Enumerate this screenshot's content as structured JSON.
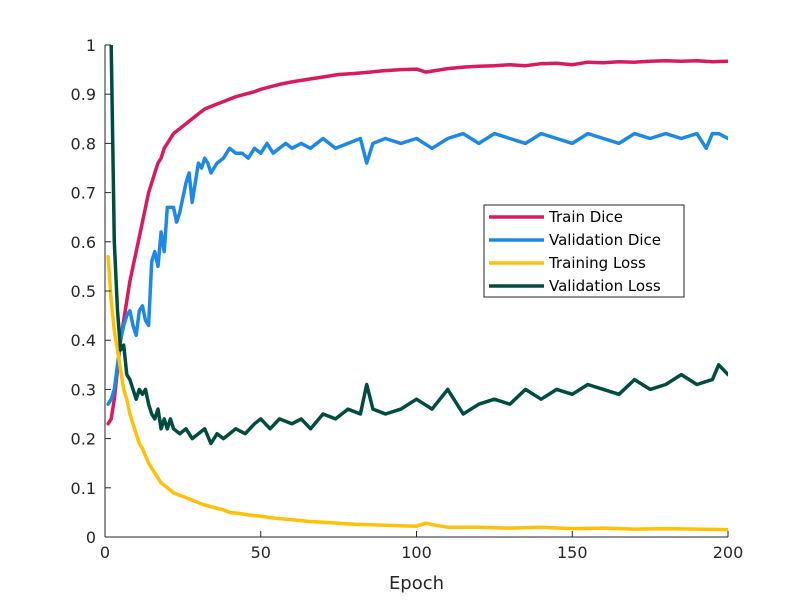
{
  "chart_data": {
    "type": "line",
    "title": "",
    "xlabel": "Epoch",
    "ylabel": "",
    "xlim": [
      0,
      200
    ],
    "ylim": [
      0,
      1
    ],
    "xticks": [
      0,
      50,
      100,
      150,
      200
    ],
    "yticks": [
      0,
      0.1,
      0.2,
      0.3,
      0.4,
      0.5,
      0.6,
      0.7,
      0.8,
      0.9,
      1
    ],
    "grid": false,
    "legend_position": "right-middle",
    "series": [
      {
        "name": "Train Dice",
        "color": "#d81b60",
        "x": [
          1,
          2,
          3,
          4,
          5,
          6,
          7,
          8,
          9,
          10,
          11,
          12,
          13,
          14,
          15,
          16,
          17,
          18,
          19,
          20,
          22,
          24,
          26,
          28,
          30,
          32,
          34,
          36,
          38,
          40,
          42,
          45,
          48,
          50,
          53,
          56,
          60,
          65,
          70,
          75,
          80,
          85,
          90,
          95,
          100,
          103,
          106,
          110,
          115,
          120,
          125,
          130,
          135,
          140,
          145,
          150,
          155,
          160,
          165,
          170,
          175,
          180,
          185,
          190,
          195,
          200
        ],
        "y": [
          0.23,
          0.24,
          0.28,
          0.34,
          0.4,
          0.44,
          0.48,
          0.52,
          0.55,
          0.58,
          0.61,
          0.64,
          0.67,
          0.7,
          0.72,
          0.74,
          0.76,
          0.77,
          0.79,
          0.8,
          0.82,
          0.83,
          0.84,
          0.85,
          0.86,
          0.87,
          0.875,
          0.88,
          0.885,
          0.89,
          0.895,
          0.9,
          0.905,
          0.91,
          0.915,
          0.92,
          0.925,
          0.93,
          0.935,
          0.94,
          0.942,
          0.945,
          0.948,
          0.95,
          0.951,
          0.945,
          0.948,
          0.952,
          0.955,
          0.957,
          0.958,
          0.96,
          0.958,
          0.962,
          0.963,
          0.96,
          0.965,
          0.964,
          0.966,
          0.965,
          0.967,
          0.968,
          0.967,
          0.968,
          0.966,
          0.967
        ]
      },
      {
        "name": "Validation Dice",
        "color": "#1e88e5",
        "x": [
          1,
          2,
          3,
          4,
          5,
          6,
          7,
          8,
          9,
          10,
          11,
          12,
          13,
          14,
          15,
          16,
          17,
          18,
          19,
          20,
          21,
          22,
          23,
          24,
          25,
          26,
          27,
          28,
          29,
          30,
          31,
          32,
          33,
          34,
          35,
          36,
          38,
          40,
          42,
          44,
          46,
          48,
          50,
          52,
          54,
          56,
          58,
          60,
          63,
          66,
          70,
          74,
          78,
          82,
          84,
          86,
          90,
          95,
          100,
          105,
          110,
          115,
          120,
          125,
          130,
          135,
          140,
          145,
          150,
          155,
          160,
          165,
          170,
          175,
          180,
          185,
          190,
          193,
          195,
          197,
          200
        ],
        "y": [
          0.27,
          0.28,
          0.3,
          0.35,
          0.4,
          0.43,
          0.45,
          0.46,
          0.43,
          0.41,
          0.46,
          0.47,
          0.44,
          0.43,
          0.56,
          0.58,
          0.55,
          0.62,
          0.58,
          0.67,
          0.67,
          0.67,
          0.64,
          0.66,
          0.69,
          0.72,
          0.74,
          0.68,
          0.72,
          0.76,
          0.75,
          0.77,
          0.76,
          0.74,
          0.75,
          0.76,
          0.77,
          0.79,
          0.78,
          0.78,
          0.77,
          0.79,
          0.78,
          0.8,
          0.78,
          0.79,
          0.8,
          0.79,
          0.8,
          0.79,
          0.81,
          0.79,
          0.8,
          0.81,
          0.76,
          0.8,
          0.81,
          0.8,
          0.81,
          0.79,
          0.81,
          0.82,
          0.8,
          0.82,
          0.81,
          0.8,
          0.82,
          0.81,
          0.8,
          0.82,
          0.81,
          0.8,
          0.82,
          0.81,
          0.82,
          0.81,
          0.82,
          0.79,
          0.82,
          0.82,
          0.81
        ]
      },
      {
        "name": "Training Loss",
        "color": "#ffc107",
        "x": [
          1,
          2,
          3,
          4,
          5,
          6,
          7,
          8,
          9,
          10,
          11,
          12,
          13,
          14,
          15,
          16,
          17,
          18,
          20,
          22,
          24,
          26,
          28,
          30,
          32,
          35,
          38,
          40,
          43,
          46,
          50,
          55,
          60,
          65,
          70,
          75,
          80,
          90,
          100,
          103,
          106,
          110,
          120,
          130,
          140,
          150,
          160,
          170,
          180,
          190,
          200
        ],
        "y": [
          0.57,
          0.48,
          0.42,
          0.38,
          0.34,
          0.3,
          0.28,
          0.25,
          0.23,
          0.21,
          0.19,
          0.18,
          0.165,
          0.15,
          0.14,
          0.13,
          0.12,
          0.11,
          0.1,
          0.09,
          0.085,
          0.08,
          0.075,
          0.07,
          0.065,
          0.06,
          0.055,
          0.05,
          0.048,
          0.045,
          0.042,
          0.038,
          0.035,
          0.032,
          0.03,
          0.028,
          0.026,
          0.024,
          0.022,
          0.028,
          0.024,
          0.02,
          0.02,
          0.018,
          0.02,
          0.017,
          0.018,
          0.016,
          0.017,
          0.016,
          0.015
        ]
      },
      {
        "name": "Validation Loss",
        "color": "#004d40",
        "x": [
          2,
          3,
          4,
          5,
          6,
          7,
          8,
          9,
          10,
          11,
          12,
          13,
          14,
          15,
          16,
          17,
          18,
          19,
          20,
          21,
          22,
          24,
          26,
          28,
          30,
          32,
          34,
          36,
          38,
          40,
          42,
          45,
          48,
          50,
          53,
          56,
          60,
          63,
          66,
          70,
          74,
          78,
          82,
          84,
          86,
          90,
          95,
          100,
          105,
          110,
          115,
          120,
          125,
          130,
          135,
          140,
          145,
          150,
          155,
          160,
          165,
          170,
          175,
          180,
          185,
          190,
          195,
          197,
          200
        ],
        "y": [
          1.0,
          0.6,
          0.46,
          0.38,
          0.39,
          0.33,
          0.32,
          0.3,
          0.28,
          0.3,
          0.29,
          0.3,
          0.27,
          0.25,
          0.24,
          0.26,
          0.22,
          0.24,
          0.22,
          0.24,
          0.22,
          0.21,
          0.22,
          0.2,
          0.21,
          0.22,
          0.19,
          0.21,
          0.2,
          0.21,
          0.22,
          0.21,
          0.23,
          0.24,
          0.22,
          0.24,
          0.23,
          0.24,
          0.22,
          0.25,
          0.24,
          0.26,
          0.25,
          0.31,
          0.26,
          0.25,
          0.26,
          0.28,
          0.26,
          0.3,
          0.25,
          0.27,
          0.28,
          0.27,
          0.3,
          0.28,
          0.3,
          0.29,
          0.31,
          0.3,
          0.29,
          0.32,
          0.3,
          0.31,
          0.33,
          0.31,
          0.32,
          0.35,
          0.33
        ]
      }
    ]
  }
}
